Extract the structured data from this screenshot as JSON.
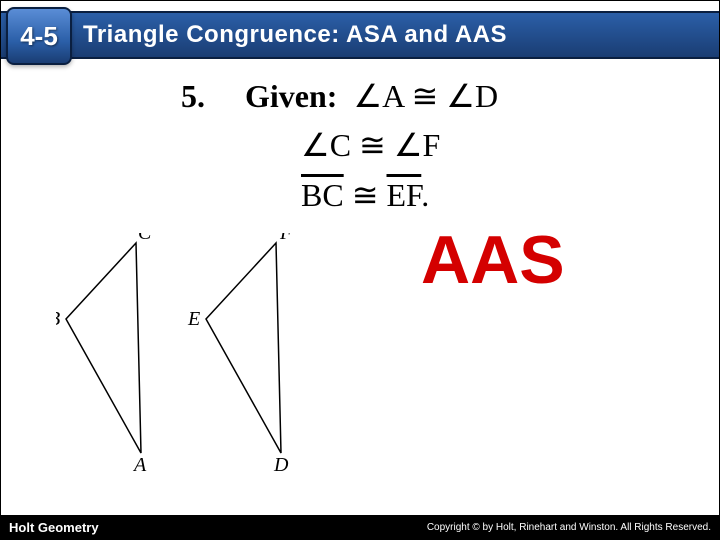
{
  "header": {
    "section_number": "4-5",
    "title": "Triangle Congruence: ASA and AAS"
  },
  "problem": {
    "number": "5.",
    "given_label": "Given:",
    "line1_parts": {
      "a1": "A",
      "a2": "D"
    },
    "line2_parts": {
      "a1": "C",
      "a2": "F"
    },
    "line3_parts": {
      "s1": "BC",
      "s2": "EF"
    }
  },
  "answer": "AAS",
  "triangles": {
    "t1": {
      "label_top": "C",
      "label_left": "B",
      "label_bottom": "A",
      "points": {
        "C": [
          80,
          10
        ],
        "B": [
          10,
          86
        ],
        "A": [
          85,
          220
        ]
      },
      "label_pos": {
        "C": [
          82,
          6
        ],
        "B": [
          -8,
          92
        ],
        "A": [
          78,
          238
        ]
      }
    },
    "t2": {
      "label_top": "F",
      "label_left": "E",
      "label_bottom": "D",
      "points": {
        "F": [
          220,
          10
        ],
        "E": [
          150,
          86
        ],
        "D": [
          225,
          220
        ]
      },
      "label_pos": {
        "F": [
          224,
          6
        ],
        "E": [
          132,
          92
        ],
        "D": [
          218,
          238
        ]
      }
    },
    "stroke_color": "#000000",
    "stroke_width": 1.5,
    "label_fontsize": 20,
    "label_style": "italic"
  },
  "footer": {
    "left": "Holt Geometry",
    "right": "Copyright © by Holt, Rinehart and Winston. All Rights Reserved."
  },
  "colors": {
    "header_gradient_top": "#2b5fa8",
    "header_gradient_bottom": "#1a3d73",
    "badge_border": "#0a1f40",
    "answer_color": "#d40000",
    "background": "#ffffff"
  }
}
